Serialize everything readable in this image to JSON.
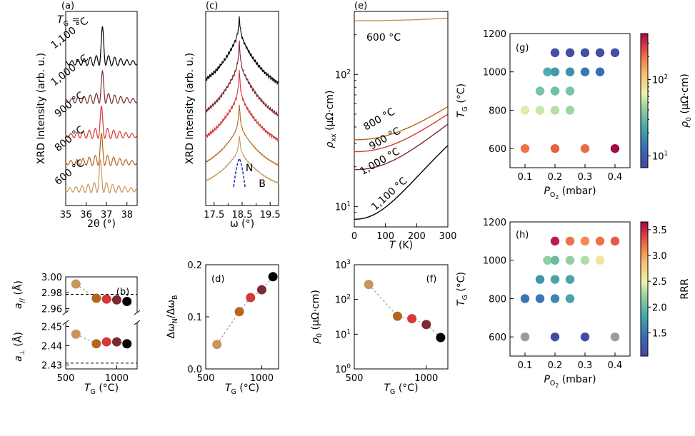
{
  "colors": {
    "t600": "#c8955a",
    "t800": "#b5651d",
    "t900": "#d63838",
    "t1000": "#7b2a2f",
    "t1100": "#000000",
    "N_curve": "#1f3fbf",
    "B_label": "#c8955a"
  },
  "chart_data": [
    {
      "panel": "a",
      "type": "line",
      "panel_label": "(a)",
      "xlabel": "2θ (°)",
      "ylabel": "XRD Intensity (arb. u.)",
      "xlim": [
        35,
        38.5
      ],
      "x_ticks": [
        "35",
        "36",
        "37",
        "38"
      ],
      "tg_symbol": "T",
      "tg_sub": "G",
      "tg_eq": " =",
      "series": [
        {
          "label": "1,100 °C",
          "color": "#000000",
          "peak": 36.8
        },
        {
          "label": "1,000 °C",
          "color": "#7b2a2f",
          "peak": 36.8
        },
        {
          "label": "900 °C",
          "color": "#d63838",
          "peak": 36.75
        },
        {
          "label": "800 °C",
          "color": "#b5651d",
          "peak": 36.75
        },
        {
          "label": "600 °C",
          "color": "#c8955a",
          "peak": 36.7
        }
      ]
    },
    {
      "panel": "b",
      "type": "scatter",
      "panel_label": "(b)",
      "xlabel_sym": "T",
      "xlabel_sub": "G",
      "xlabel_unit": " (°C)",
      "x_ticks": [
        "500",
        "1000"
      ],
      "xlim": [
        500,
        1200
      ],
      "upper": {
        "ylabel_sym": "a",
        "ylabel_sub": "//",
        "ylabel_unit": " (Å)",
        "ylim": [
          2.955,
          3.0
        ],
        "y_ticks": [
          "3.00",
          "2.98",
          "2.96"
        ],
        "reference": 2.978,
        "x": [
          600,
          800,
          900,
          1000,
          1100
        ],
        "y": [
          2.991,
          2.973,
          2.972,
          2.971,
          2.969
        ]
      },
      "lower": {
        "ylabel_sym": "a",
        "ylabel_sub": "⊥",
        "ylabel_unit": " (Å)",
        "ylim": [
          2.428,
          2.452
        ],
        "y_ticks": [
          "2.45",
          "2.44",
          "2.43"
        ],
        "reference": 2.431,
        "x": [
          600,
          800,
          900,
          1000,
          1100
        ],
        "y": [
          2.446,
          2.441,
          2.442,
          2.442,
          2.441
        ]
      }
    },
    {
      "panel": "c",
      "type": "line",
      "panel_label": "(c)",
      "xlabel": "ω (°)",
      "ylabel": "XRD Intensity (arb. u.)",
      "xlim": [
        17.2,
        19.8
      ],
      "x_ticks": [
        "17.5",
        "18.5",
        "19.5"
      ],
      "labels": {
        "N": "N",
        "B": "B"
      },
      "series": [
        {
          "T_G": 1100,
          "color": "#000000"
        },
        {
          "T_G": 1000,
          "color": "#7b2a2f"
        },
        {
          "T_G": 900,
          "color": "#d63838"
        },
        {
          "T_G": 800,
          "color": "#b5651d"
        },
        {
          "T_G": 600,
          "color": "#c8955a"
        }
      ]
    },
    {
      "panel": "d",
      "type": "scatter",
      "panel_label": "(d)",
      "ylabel_text": "Δω",
      "ylabel_sub1": "N",
      "ylabel_mid": "/Δω",
      "ylabel_sub2": "B",
      "xlabel_sym": "T",
      "xlabel_sub": "G",
      "xlabel_unit": " (°C)",
      "xlim": [
        500,
        1150
      ],
      "ylim": [
        0.0,
        0.2
      ],
      "x_ticks": [
        "500",
        "1000"
      ],
      "y_ticks": [
        "0.0",
        "0.1",
        "0.2"
      ],
      "x": [
        600,
        800,
        900,
        1000,
        1100
      ],
      "y": [
        0.047,
        0.11,
        0.137,
        0.152,
        0.177
      ]
    },
    {
      "panel": "e",
      "type": "line",
      "panel_label": "(e)",
      "xlabel_sym": "T",
      "xlabel_unit": " (K)",
      "ylabel_sym": "ρ",
      "ylabel_sub": "xx",
      "ylabel_unit": " (μΩ·cm)",
      "xlim": [
        0,
        300
      ],
      "ylim_log": [
        7,
        300
      ],
      "yscale": "log",
      "x_ticks": [
        "0",
        "100",
        "200",
        "300"
      ],
      "y_ticks": [
        "10",
        "10"
      ],
      "y_tick_sup": [
        "1",
        "2"
      ],
      "series": [
        {
          "label": "600 °C",
          "color": "#c8955a",
          "rho0": 255,
          "A": 12
        },
        {
          "label": "800 °C",
          "color": "#b5651d",
          "rho0": 32,
          "A": 25
        },
        {
          "label": "900 °C",
          "color": "#d63838",
          "rho0": 26,
          "A": 24
        },
        {
          "label": "1,000 °C",
          "color": "#7b2a2f",
          "rho0": 19,
          "A": 23
        },
        {
          "label": "1,100 °C",
          "color": "#000000",
          "rho0": 8,
          "A": 21
        }
      ]
    },
    {
      "panel": "f",
      "type": "scatter",
      "panel_label": "(f)",
      "ylabel_sym": "ρ",
      "ylabel_sub": "0",
      "ylabel_unit": " (μΩ·cm)",
      "xlabel_sym": "T",
      "xlabel_sub": "G",
      "xlabel_unit": " (°C)",
      "xlim": [
        500,
        1150
      ],
      "ylim_log": [
        1,
        1000
      ],
      "yscale": "log",
      "x_ticks": [
        "500",
        "1000"
      ],
      "y_ticks": [
        "10",
        "10",
        "10",
        "10"
      ],
      "y_tick_sup": [
        "0",
        "1",
        "2",
        "3"
      ],
      "x": [
        600,
        800,
        900,
        1000,
        1100
      ],
      "y": [
        270,
        33,
        28,
        19,
        8
      ]
    },
    {
      "panel": "g",
      "type": "scatter",
      "panel_label": "(g)",
      "xlabel_sym": "P",
      "xlabel_sub": "O",
      "xlabel_subsub": "2",
      "xlabel_unit": " (mbar)",
      "ylabel_sym": "T",
      "ylabel_sub": "G",
      "ylabel_unit": " (°C)",
      "xlim": [
        0.05,
        0.45
      ],
      "ylim": [
        500,
        1200
      ],
      "x_ticks": [
        "0.1",
        "0.2",
        "0.3",
        "0.4"
      ],
      "y_ticks": [
        "600",
        "800",
        "1000",
        "1200"
      ],
      "colorbar": {
        "label_sym": "ρ",
        "label_sub": "0",
        "label_unit": " (μΩ·cm)",
        "scale": "log",
        "range": [
          7,
          400
        ],
        "ticks": [
          "10",
          "10"
        ],
        "tick_sup": [
          "1",
          "2"
        ]
      },
      "points": [
        {
          "x": 0.1,
          "y": 600,
          "c": 200
        },
        {
          "x": 0.2,
          "y": 600,
          "c": 220
        },
        {
          "x": 0.3,
          "y": 600,
          "c": 210
        },
        {
          "x": 0.4,
          "y": 600,
          "c": 400
        },
        {
          "x": 0.1,
          "y": 800,
          "c": 60
        },
        {
          "x": 0.15,
          "y": 800,
          "c": 55
        },
        {
          "x": 0.2,
          "y": 800,
          "c": 50
        },
        {
          "x": 0.25,
          "y": 800,
          "c": 45
        },
        {
          "x": 0.15,
          "y": 900,
          "c": 35
        },
        {
          "x": 0.2,
          "y": 900,
          "c": 33
        },
        {
          "x": 0.25,
          "y": 900,
          "c": 35
        },
        {
          "x": 0.175,
          "y": 1000,
          "c": 25
        },
        {
          "x": 0.2,
          "y": 1000,
          "c": 20
        },
        {
          "x": 0.25,
          "y": 1000,
          "c": 18
        },
        {
          "x": 0.3,
          "y": 1000,
          "c": 14
        },
        {
          "x": 0.35,
          "y": 1000,
          "c": 13
        },
        {
          "x": 0.2,
          "y": 1100,
          "c": 8
        },
        {
          "x": 0.25,
          "y": 1100,
          "c": 8
        },
        {
          "x": 0.3,
          "y": 1100,
          "c": 8
        },
        {
          "x": 0.35,
          "y": 1100,
          "c": 8
        },
        {
          "x": 0.4,
          "y": 1100,
          "c": 8
        }
      ]
    },
    {
      "panel": "h",
      "type": "scatter",
      "panel_label": "(h)",
      "xlabel_sym": "P",
      "xlabel_sub": "O",
      "xlabel_subsub": "2",
      "xlabel_unit": " (mbar)",
      "ylabel_sym": "T",
      "ylabel_sub": "G",
      "ylabel_unit": " (°C)",
      "xlim": [
        0.05,
        0.45
      ],
      "ylim": [
        500,
        1200
      ],
      "x_ticks": [
        "0.1",
        "0.2",
        "0.3",
        "0.4"
      ],
      "y_ticks": [
        "600",
        "800",
        "1000",
        "1200"
      ],
      "colorbar": {
        "label": "RRR",
        "scale": "linear",
        "range": [
          1.05,
          3.65
        ],
        "ticks": [
          "1.5",
          "2.0",
          "2.5",
          "3.0",
          "3.5"
        ]
      },
      "points": [
        {
          "x": 0.1,
          "y": 600,
          "c": null
        },
        {
          "x": 0.2,
          "y": 600,
          "c": 1.1
        },
        {
          "x": 0.3,
          "y": 600,
          "c": 1.1
        },
        {
          "x": 0.4,
          "y": 600,
          "c": null
        },
        {
          "x": 0.1,
          "y": 800,
          "c": 1.5
        },
        {
          "x": 0.15,
          "y": 800,
          "c": 1.5
        },
        {
          "x": 0.2,
          "y": 800,
          "c": 1.6
        },
        {
          "x": 0.25,
          "y": 800,
          "c": 1.8
        },
        {
          "x": 0.15,
          "y": 900,
          "c": 1.7
        },
        {
          "x": 0.2,
          "y": 900,
          "c": 1.8
        },
        {
          "x": 0.25,
          "y": 900,
          "c": 1.8
        },
        {
          "x": 0.175,
          "y": 1000,
          "c": 2.2
        },
        {
          "x": 0.2,
          "y": 1000,
          "c": 2.0
        },
        {
          "x": 0.25,
          "y": 1000,
          "c": 2.2
        },
        {
          "x": 0.3,
          "y": 1000,
          "c": 2.3
        },
        {
          "x": 0.35,
          "y": 1000,
          "c": 2.6
        },
        {
          "x": 0.2,
          "y": 1100,
          "c": 3.55
        },
        {
          "x": 0.25,
          "y": 1100,
          "c": 3.2
        },
        {
          "x": 0.3,
          "y": 1100,
          "c": 3.1
        },
        {
          "x": 0.35,
          "y": 1100,
          "c": 3.2
        },
        {
          "x": 0.4,
          "y": 1100,
          "c": 3.3
        }
      ]
    }
  ]
}
